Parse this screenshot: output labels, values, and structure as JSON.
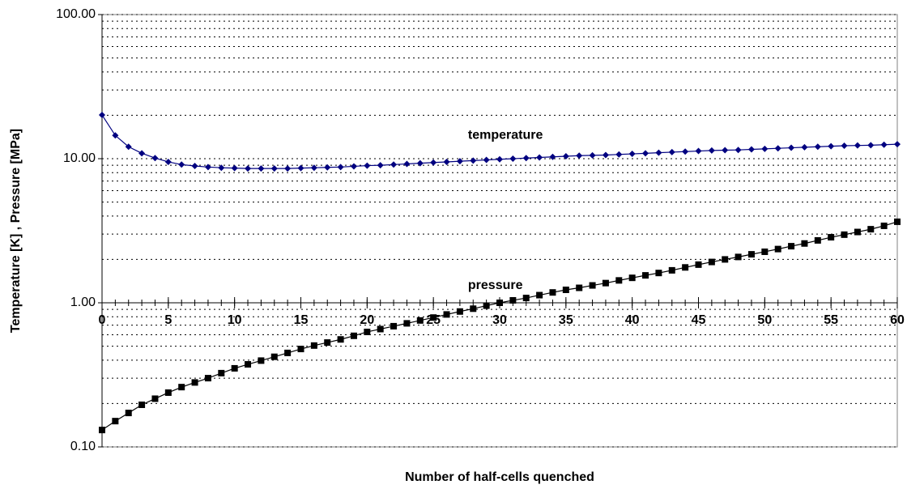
{
  "chart_data": {
    "type": "line",
    "x_label": "Number of half-cells quenched",
    "y_label": "Temperature [K]   ,   Pressure [MPa]",
    "x": [
      0,
      1,
      2,
      3,
      4,
      5,
      6,
      7,
      8,
      9,
      10,
      11,
      12,
      13,
      14,
      15,
      16,
      17,
      18,
      19,
      20,
      21,
      22,
      23,
      24,
      25,
      26,
      27,
      28,
      29,
      30,
      31,
      32,
      33,
      34,
      35,
      36,
      37,
      38,
      39,
      40,
      41,
      42,
      43,
      44,
      45,
      46,
      47,
      48,
      49,
      50,
      51,
      52,
      53,
      54,
      55,
      56,
      57,
      58,
      59,
      60
    ],
    "series": [
      {
        "name": "temperature",
        "color": "#000080",
        "marker": "diamond",
        "values": [
          20.1,
          14.5,
          12.1,
          10.9,
          10.1,
          9.5,
          9.1,
          8.9,
          8.75,
          8.65,
          8.6,
          8.55,
          8.55,
          8.55,
          8.55,
          8.6,
          8.65,
          8.7,
          8.75,
          8.85,
          8.95,
          9.0,
          9.1,
          9.2,
          9.3,
          9.4,
          9.5,
          9.6,
          9.7,
          9.8,
          9.9,
          10.0,
          10.1,
          10.2,
          10.3,
          10.4,
          10.5,
          10.55,
          10.6,
          10.7,
          10.8,
          10.9,
          11.0,
          11.1,
          11.2,
          11.3,
          11.4,
          11.45,
          11.5,
          11.6,
          11.7,
          11.8,
          11.9,
          12.0,
          12.1,
          12.2,
          12.3,
          12.35,
          12.4,
          12.5,
          12.6
        ]
      },
      {
        "name": "pressure",
        "color": "#000000",
        "marker": "square",
        "values": [
          0.131,
          0.151,
          0.172,
          0.196,
          0.216,
          0.238,
          0.26,
          0.28,
          0.3,
          0.325,
          0.351,
          0.374,
          0.397,
          0.422,
          0.449,
          0.478,
          0.505,
          0.53,
          0.557,
          0.59,
          0.628,
          0.657,
          0.688,
          0.72,
          0.754,
          0.79,
          0.83,
          0.87,
          0.91,
          0.955,
          1.0,
          1.04,
          1.08,
          1.13,
          1.18,
          1.23,
          1.27,
          1.32,
          1.37,
          1.43,
          1.49,
          1.55,
          1.61,
          1.68,
          1.76,
          1.84,
          1.92,
          2.0,
          2.08,
          2.17,
          2.26,
          2.36,
          2.47,
          2.58,
          2.71,
          2.85,
          2.97,
          3.1,
          3.24,
          3.42,
          3.65
        ]
      }
    ],
    "xlim": [
      0,
      60
    ],
    "xticks": [
      0,
      5,
      10,
      15,
      20,
      25,
      30,
      35,
      40,
      45,
      50,
      55,
      60
    ],
    "ylim": [
      0.1,
      100
    ],
    "log_y": true,
    "x_axis_crosses": 1,
    "yticks": [
      {
        "value": 0.1,
        "label": "0.10"
      },
      {
        "value": 1,
        "label": "1.00"
      },
      {
        "value": 10,
        "label": "10.00"
      },
      {
        "value": 100,
        "label": "100.00"
      }
    ],
    "grid": true,
    "minor_grid": true
  }
}
